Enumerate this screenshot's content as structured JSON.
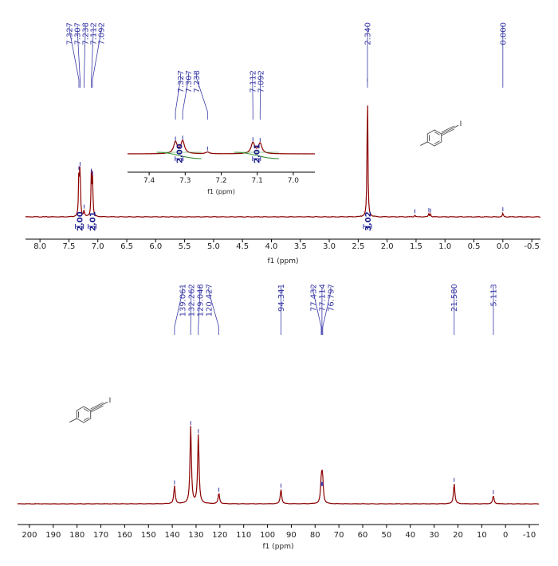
{
  "colors": {
    "spectrum": "#8b0000",
    "label": "#3a3aa8",
    "axis": "#000000",
    "integration": "#1a1a8a",
    "integral_curve": "#2e8b2e"
  },
  "chart_data": [
    {
      "type": "line",
      "nucleus": "1H",
      "xlabel": "f1 (ppm)",
      "xlim": [
        8.25,
        -0.65
      ],
      "x_ticks": [
        "8.0",
        "7.5",
        "7.0",
        "6.5",
        "6.0",
        "5.5",
        "5.0",
        "4.5",
        "4.0",
        "3.5",
        "3.0",
        "2.5",
        "2.0",
        "1.5",
        "1.0",
        "0.5",
        "0.0",
        "-0.5"
      ],
      "peaks": [
        {
          "x": 7.327,
          "height": 0.34
        },
        {
          "x": 7.307,
          "height": 0.37
        },
        {
          "x": 7.238,
          "height": 0.05
        },
        {
          "x": 7.112,
          "height": 0.32
        },
        {
          "x": 7.092,
          "height": 0.3
        },
        {
          "x": 2.34,
          "height": 1.0
        },
        {
          "x": 1.52,
          "height": 0.015
        },
        {
          "x": 1.28,
          "height": 0.025
        },
        {
          "x": 1.25,
          "height": 0.02
        },
        {
          "x": 0.0,
          "height": 0.03
        }
      ],
      "peak_labels": [
        {
          "group": [
            7.327,
            7.307,
            7.238,
            7.112,
            7.092
          ],
          "texts": [
            "7.327",
            "7.307",
            "7.238",
            "7.112",
            "7.092"
          ]
        },
        {
          "group": [
            2.34
          ],
          "texts": [
            "2.340"
          ]
        },
        {
          "group": [
            0.0
          ],
          "texts": [
            "0.000"
          ]
        }
      ],
      "integrations": [
        {
          "center": 7.32,
          "value": "2.00"
        },
        {
          "center": 7.1,
          "value": "2.01"
        },
        {
          "center": 2.34,
          "value": "3.02"
        }
      ],
      "inset": {
        "xlabel": "f1 (ppm)",
        "xlim": [
          7.46,
          6.94
        ],
        "x_ticks": [
          "7.4",
          "7.3",
          "7.2",
          "7.1",
          "7.0"
        ],
        "peak_labels": [
          {
            "group": [
              7.327,
              7.307,
              7.238
            ],
            "texts": [
              "7.327",
              "7.307",
              "7.238"
            ]
          },
          {
            "group": [
              7.112,
              7.092
            ],
            "texts": [
              "7.112",
              "7.092"
            ]
          }
        ],
        "integrations": [
          {
            "center": 7.317,
            "value": "2.00"
          },
          {
            "center": 7.102,
            "value": "2.01"
          }
        ]
      },
      "structure_substituent": "I"
    },
    {
      "type": "line",
      "nucleus": "13C",
      "xlabel": "f1 (ppm)",
      "xlim": [
        205,
        -14
      ],
      "x_ticks": [
        "200",
        "190",
        "180",
        "170",
        "160",
        "150",
        "140",
        "130",
        "120",
        "110",
        "100",
        "90",
        "80",
        "70",
        "60",
        "50",
        "40",
        "30",
        "20",
        "10",
        "0",
        "-10"
      ],
      "peaks": [
        {
          "x": 139.061,
          "height": 0.22
        },
        {
          "x": 132.262,
          "height": 0.95
        },
        {
          "x": 129.048,
          "height": 0.85
        },
        {
          "x": 120.427,
          "height": 0.13
        },
        {
          "x": 94.341,
          "height": 0.18
        },
        {
          "x": 77.432,
          "height": 0.2
        },
        {
          "x": 77.114,
          "height": 0.2
        },
        {
          "x": 76.797,
          "height": 0.2
        },
        {
          "x": 21.58,
          "height": 0.25
        },
        {
          "x": 5.113,
          "height": 0.1
        }
      ],
      "peak_labels": [
        {
          "group": [
            139.061,
            132.262,
            129.048,
            120.427
          ],
          "texts": [
            "139.061",
            "132.262",
            "129.048",
            "120.427"
          ]
        },
        {
          "group": [
            94.341
          ],
          "texts": [
            "94.341"
          ]
        },
        {
          "group": [
            77.432,
            77.114,
            76.797
          ],
          "texts": [
            "77.432",
            "77.114",
            "76.797"
          ]
        },
        {
          "group": [
            21.58
          ],
          "texts": [
            "21.580"
          ]
        },
        {
          "group": [
            5.113
          ],
          "texts": [
            "5.113"
          ]
        }
      ],
      "structure_substituent": "I"
    }
  ]
}
